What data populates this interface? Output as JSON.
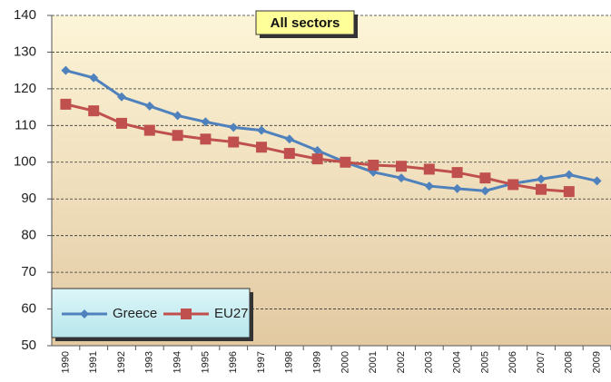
{
  "chart_data": {
    "type": "line",
    "title": "All sectors",
    "categories": [
      "1990",
      "1991",
      "1992",
      "1993",
      "1994",
      "1995",
      "1996",
      "1997",
      "1998",
      "1999",
      "2000",
      "2001",
      "2002",
      "2003",
      "2004",
      "2005",
      "2006",
      "2007",
      "2008",
      "2009"
    ],
    "series": [
      {
        "name": "Greece",
        "color": "#4f81bd",
        "marker": "diamond",
        "values": [
          125,
          123,
          117.8,
          115.3,
          112.7,
          111,
          109.5,
          108.7,
          106.3,
          103.2,
          100,
          97.3,
          95.7,
          93.5,
          92.8,
          92.2,
          94.2,
          95.4,
          96.6,
          94.9
        ]
      },
      {
        "name": "EU27",
        "color": "#c0504d",
        "marker": "square",
        "values": [
          115.8,
          114,
          110.6,
          108.7,
          107.3,
          106.3,
          105.5,
          104.1,
          102.4,
          100.9,
          100,
          99.2,
          98.9,
          98.1,
          97.2,
          95.7,
          93.9,
          92.6,
          92,
          null
        ]
      }
    ],
    "ylim": [
      50,
      140
    ],
    "yticks": [
      50,
      60,
      70,
      80,
      90,
      100,
      110,
      120,
      130,
      140
    ],
    "grid": true,
    "legend": "lower left"
  }
}
